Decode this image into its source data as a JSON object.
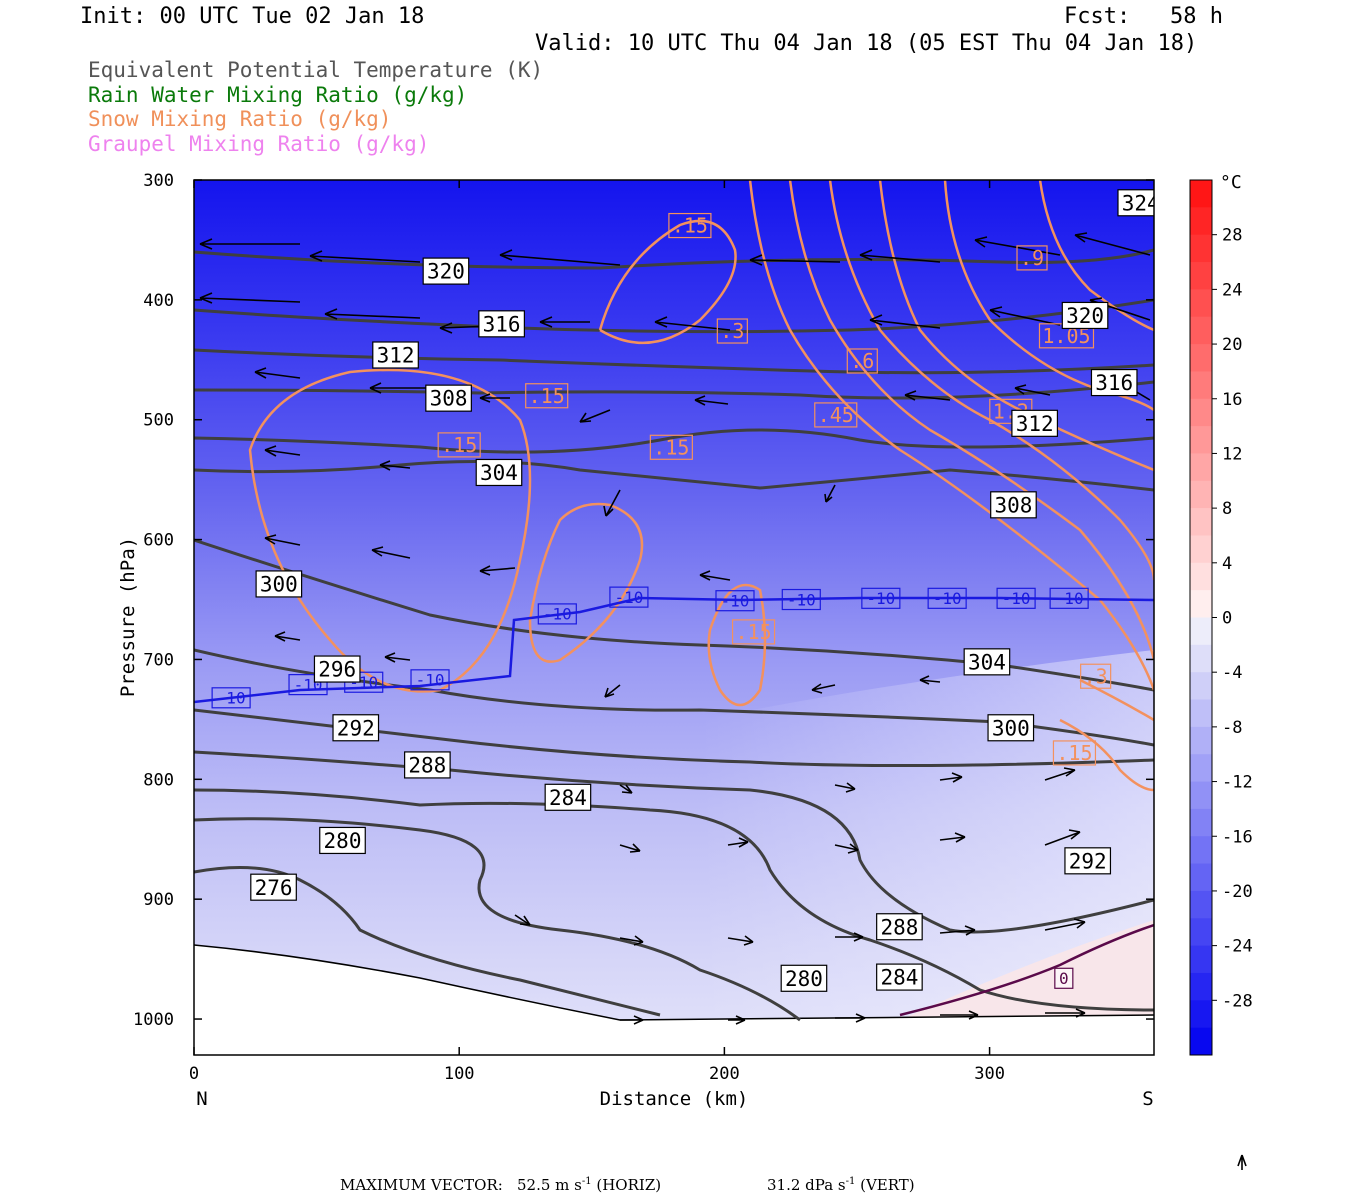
{
  "header": {
    "init": "Init: 00 UTC Tue 02 Jan 18",
    "fcst": "Fcst:   58 h",
    "valid": "Valid: 10 UTC Thu 04 Jan 18 (05 EST Thu 04 Jan 18)"
  },
  "legend": [
    {
      "label": "Equivalent Potential Temperature (K)",
      "color": "#555555"
    },
    {
      "label": "Rain Water Mixing Ratio (g/kg)",
      "color": "#0a7a0a"
    },
    {
      "label": "Snow Mixing Ratio (g/kg)",
      "color": "#f0905a"
    },
    {
      "label": "Graupel Mixing Ratio (g/kg)",
      "color": "#ee82ee"
    }
  ],
  "chart_data": {
    "type": "cross-section",
    "xlabel": "Distance (km)",
    "ylabel": "Pressure (hPa)",
    "xlim": [
      0,
      362
    ],
    "ylim": [
      1030,
      300
    ],
    "x_ticks": [
      0,
      100,
      200,
      300
    ],
    "y_ticks": [
      300,
      400,
      500,
      600,
      700,
      800,
      900,
      1000
    ],
    "x_end_labels": {
      "left": "N",
      "right": "S"
    },
    "colorbar": {
      "unit": "°C",
      "ticks": [
        28,
        24,
        20,
        16,
        12,
        8,
        4,
        0,
        -4,
        -8,
        -12,
        -16,
        -20,
        -24,
        -28
      ]
    },
    "theta_e_labels": [
      {
        "x": 95,
        "p": 376,
        "label": "320"
      },
      {
        "x": 116,
        "p": 420,
        "label": "316"
      },
      {
        "x": 76,
        "p": 446,
        "label": "312"
      },
      {
        "x": 96,
        "p": 482,
        "label": "308"
      },
      {
        "x": 115,
        "p": 544,
        "label": "304"
      },
      {
        "x": 32,
        "p": 637,
        "label": "300"
      },
      {
        "x": 54,
        "p": 708,
        "label": "296"
      },
      {
        "x": 61,
        "p": 757,
        "label": "292"
      },
      {
        "x": 88,
        "p": 788,
        "label": "288"
      },
      {
        "x": 141,
        "p": 815,
        "label": "284"
      },
      {
        "x": 56,
        "p": 851,
        "label": "280"
      },
      {
        "x": 30,
        "p": 890,
        "label": "276"
      },
      {
        "x": 357,
        "p": 319,
        "label": "324"
      },
      {
        "x": 336,
        "p": 413,
        "label": "320"
      },
      {
        "x": 347,
        "p": 469,
        "label": "316"
      },
      {
        "x": 317,
        "p": 503,
        "label": "312"
      },
      {
        "x": 309,
        "p": 571,
        "label": "308"
      },
      {
        "x": 299,
        "p": 702,
        "label": "304"
      },
      {
        "x": 308,
        "p": 757,
        "label": "300"
      },
      {
        "x": 337,
        "p": 868,
        "label": "292"
      },
      {
        "x": 266,
        "p": 923,
        "label": "288"
      },
      {
        "x": 266,
        "p": 965,
        "label": "284"
      },
      {
        "x": 230,
        "p": 966,
        "label": "280"
      }
    ],
    "snow_labels": [
      {
        "x": 187,
        "p": 338,
        "label": ".15"
      },
      {
        "x": 133,
        "p": 480,
        "label": ".15"
      },
      {
        "x": 100,
        "p": 521,
        "label": ".15"
      },
      {
        "x": 180,
        "p": 523,
        "label": ".15"
      },
      {
        "x": 203,
        "p": 426,
        "label": ".3"
      },
      {
        "x": 252,
        "p": 451,
        "label": ".6"
      },
      {
        "x": 242,
        "p": 496,
        "label": ".45"
      },
      {
        "x": 316,
        "p": 365,
        "label": ".9"
      },
      {
        "x": 329,
        "p": 430,
        "label": "1.05"
      },
      {
        "x": 308,
        "p": 493,
        "label": "1.2"
      },
      {
        "x": 211,
        "p": 677,
        "label": ".15"
      },
      {
        "x": 340,
        "p": 714,
        "label": ".3"
      },
      {
        "x": 332,
        "p": 778,
        "label": ".15"
      }
    ],
    "isotherm_labels": [
      {
        "x": 14,
        "p": 732,
        "label": "-10"
      },
      {
        "x": 43,
        "p": 721,
        "label": "-10"
      },
      {
        "x": 64,
        "p": 719,
        "label": "-10"
      },
      {
        "x": 89,
        "p": 717,
        "label": "-10"
      },
      {
        "x": 137,
        "p": 662,
        "label": "-10"
      },
      {
        "x": 164,
        "p": 648,
        "label": "-10"
      },
      {
        "x": 204,
        "p": 651,
        "label": "-10"
      },
      {
        "x": 229,
        "p": 650,
        "label": "-10"
      },
      {
        "x": 259,
        "p": 649,
        "label": "-10"
      },
      {
        "x": 284,
        "p": 649,
        "label": "-10"
      },
      {
        "x": 310,
        "p": 649,
        "label": "-10"
      },
      {
        "x": 330,
        "p": 649,
        "label": "-10"
      }
    ],
    "zero_isotherm_label": {
      "x": 328,
      "p": 966,
      "label": "0"
    }
  },
  "footer": {
    "max_vector_label": "MAXIMUM VECTOR:",
    "horiz_value": "52.5 m s",
    "horiz_exp": "-1",
    "horiz_tag": " (HORIZ)",
    "vert_value": "31.2 dPa s",
    "vert_exp": "-1",
    "vert_tag": " (VERT)"
  }
}
